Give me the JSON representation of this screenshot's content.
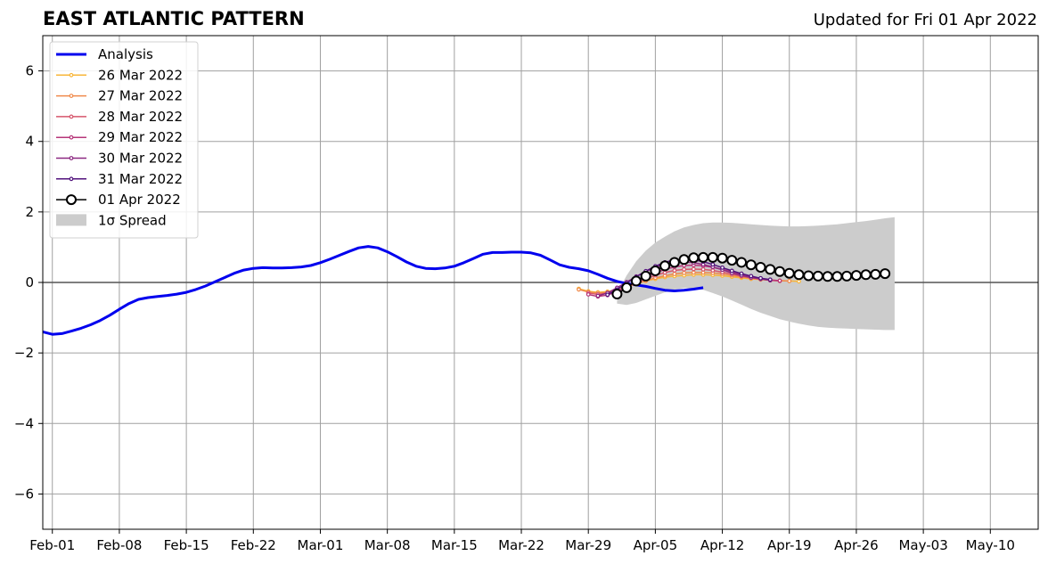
{
  "chart_data": {
    "type": "line",
    "title": "EAST ATLANTIC PATTERN",
    "subtitle": "Updated for Fri 01 Apr 2022",
    "xlabel": "",
    "ylabel": "",
    "x_range": [
      "2022-01-31",
      "2022-05-15"
    ],
    "ylim": [
      -7,
      7
    ],
    "grid": true,
    "legend_position": "top-left",
    "x_ticks": [
      {
        "date": "2022-02-01",
        "label": "Feb-01"
      },
      {
        "date": "2022-02-08",
        "label": "Feb-08"
      },
      {
        "date": "2022-02-15",
        "label": "Feb-15"
      },
      {
        "date": "2022-02-22",
        "label": "Feb-22"
      },
      {
        "date": "2022-03-01",
        "label": "Mar-01"
      },
      {
        "date": "2022-03-08",
        "label": "Mar-08"
      },
      {
        "date": "2022-03-15",
        "label": "Mar-15"
      },
      {
        "date": "2022-03-22",
        "label": "Mar-22"
      },
      {
        "date": "2022-03-29",
        "label": "Mar-29"
      },
      {
        "date": "2022-04-05",
        "label": "Apr-05"
      },
      {
        "date": "2022-04-12",
        "label": "Apr-12"
      },
      {
        "date": "2022-04-19",
        "label": "Apr-19"
      },
      {
        "date": "2022-04-26",
        "label": "Apr-26"
      },
      {
        "date": "2022-05-03",
        "label": "May-03"
      },
      {
        "date": "2022-05-10",
        "label": "May-10"
      }
    ],
    "y_ticks": [
      {
        "value": 6,
        "label": "6"
      },
      {
        "value": 4,
        "label": "4"
      },
      {
        "value": 2,
        "label": "2"
      },
      {
        "value": 0,
        "label": "0"
      },
      {
        "value": -2,
        "label": "−2"
      },
      {
        "value": -4,
        "label": "−4"
      },
      {
        "value": -6,
        "label": "−6"
      }
    ],
    "analysis": {
      "name": "Analysis",
      "color": "#0000ee",
      "start_date": "2022-01-31",
      "values": [
        -1.4,
        -1.47,
        -1.45,
        -1.38,
        -1.3,
        -1.2,
        -1.08,
        -0.93,
        -0.76,
        -0.6,
        -0.48,
        -0.43,
        -0.4,
        -0.37,
        -0.33,
        -0.28,
        -0.2,
        -0.1,
        0.02,
        0.14,
        0.26,
        0.35,
        0.4,
        0.42,
        0.41,
        0.41,
        0.42,
        0.44,
        0.48,
        0.56,
        0.66,
        0.77,
        0.88,
        0.98,
        1.02,
        0.98,
        0.87,
        0.73,
        0.58,
        0.46,
        0.4,
        0.39,
        0.41,
        0.46,
        0.56,
        0.68,
        0.8,
        0.85,
        0.85,
        0.86,
        0.86,
        0.84,
        0.77,
        0.64,
        0.5,
        0.43,
        0.39,
        0.33,
        0.23,
        0.12,
        0.03,
        -0.03,
        -0.07,
        -0.11,
        -0.17,
        -0.22,
        -0.24,
        -0.22,
        -0.19,
        -0.15
      ]
    },
    "series": [
      {
        "name": "26 Mar 2022",
        "color": "#f8b639",
        "start_date": "2022-03-28",
        "values": [
          -0.18,
          -0.25,
          -0.28,
          -0.26,
          -0.2,
          -0.12,
          -0.04,
          0.04,
          0.1,
          0.15,
          0.18,
          0.2,
          0.22,
          0.22,
          0.21,
          0.19,
          0.16,
          0.13,
          0.1,
          0.08,
          0.06,
          0.05,
          0.04,
          0.03
        ]
      },
      {
        "name": "27 Mar 2022",
        "color": "#f08a4b",
        "start_date": "2022-03-28",
        "values": [
          -0.2,
          -0.27,
          -0.3,
          -0.28,
          -0.22,
          -0.13,
          -0.04,
          0.05,
          0.13,
          0.19,
          0.24,
          0.27,
          0.28,
          0.28,
          0.27,
          0.24,
          0.2,
          0.16,
          0.12,
          0.09,
          0.07,
          0.05,
          0.04
        ]
      },
      {
        "name": "28 Mar 2022",
        "color": "#d6566c",
        "start_date": "2022-03-29",
        "values": [
          -0.3,
          -0.34,
          -0.3,
          -0.22,
          -0.12,
          -0.01,
          0.1,
          0.2,
          0.28,
          0.34,
          0.37,
          0.38,
          0.37,
          0.34,
          0.29,
          0.24,
          0.18,
          0.13,
          0.09,
          0.06,
          0.04
        ]
      },
      {
        "name": "29 Mar 2022",
        "color": "#b63679",
        "start_date": "2022-03-29",
        "values": [
          -0.34,
          -0.4,
          -0.36,
          -0.26,
          -0.12,
          0.02,
          0.15,
          0.27,
          0.37,
          0.44,
          0.48,
          0.49,
          0.47,
          0.43,
          0.37,
          0.3,
          0.23,
          0.16,
          0.11,
          0.07,
          0.05
        ]
      },
      {
        "name": "30 Mar 2022",
        "color": "#8c2981",
        "start_date": "2022-03-30",
        "values": [
          -0.38,
          -0.3,
          -0.15,
          0.01,
          0.17,
          0.31,
          0.43,
          0.52,
          0.57,
          0.58,
          0.56,
          0.51,
          0.44,
          0.36,
          0.27,
          0.2,
          0.14,
          0.1,
          0.06
        ]
      },
      {
        "name": "31 Mar 2022",
        "color": "#51127c",
        "start_date": "2022-03-31",
        "values": [
          -0.35,
          -0.2,
          -0.02,
          0.16,
          0.32,
          0.46,
          0.57,
          0.64,
          0.66,
          0.64,
          0.59,
          0.51,
          0.42,
          0.33,
          0.25,
          0.18,
          0.12,
          0.08
        ]
      },
      {
        "name": "01 Apr 2022",
        "color": "#000000",
        "start_date": "2022-04-01",
        "values": [
          -0.33,
          -0.15,
          0.04,
          0.18,
          0.33,
          0.47,
          0.57,
          0.65,
          0.7,
          0.71,
          0.71,
          0.69,
          0.63,
          0.57,
          0.5,
          0.43,
          0.37,
          0.31,
          0.26,
          0.22,
          0.19,
          0.18,
          0.17,
          0.17,
          0.18,
          0.2,
          0.22,
          0.23,
          0.25
        ]
      }
    ],
    "spread": {
      "name": "1σ Spread",
      "color": "#cccccc",
      "start_date": "2022-04-01",
      "upper": [
        -0.3,
        0.2,
        0.6,
        0.9,
        1.13,
        1.3,
        1.45,
        1.56,
        1.63,
        1.68,
        1.7,
        1.7,
        1.69,
        1.67,
        1.65,
        1.63,
        1.61,
        1.6,
        1.59,
        1.59,
        1.6,
        1.61,
        1.63,
        1.65,
        1.68,
        1.71,
        1.74,
        1.78,
        1.82,
        1.85
      ],
      "lower": [
        -0.6,
        -0.64,
        -0.58,
        -0.48,
        -0.38,
        -0.28,
        -0.2,
        -0.16,
        -0.17,
        -0.21,
        -0.3,
        -0.4,
        -0.51,
        -0.63,
        -0.75,
        -0.86,
        -0.95,
        -1.04,
        -1.11,
        -1.17,
        -1.22,
        -1.26,
        -1.28,
        -1.3,
        -1.31,
        -1.32,
        -1.33,
        -1.34,
        -1.35,
        -1.35
      ]
    }
  }
}
